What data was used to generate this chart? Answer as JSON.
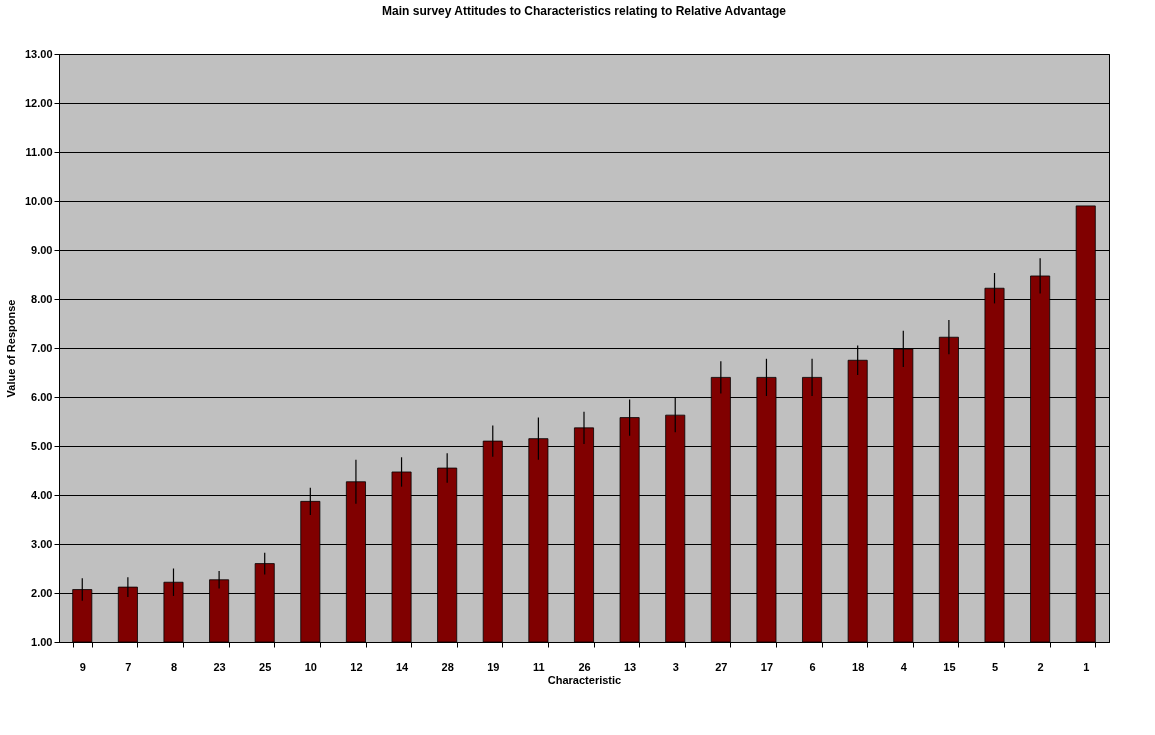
{
  "chart_data": {
    "type": "bar",
    "title": "Main survey Attitudes to Characteristics relating to Relative Advantage",
    "xlabel": "Characteristic",
    "ylabel": "Value of Response",
    "categories": [
      "9",
      "7",
      "8",
      "23",
      "25",
      "10",
      "12",
      "14",
      "28",
      "19",
      "11",
      "26",
      "13",
      "3",
      "27",
      "17",
      "6",
      "18",
      "4",
      "15",
      "5",
      "2",
      "1"
    ],
    "values": [
      2.07,
      2.12,
      2.22,
      2.27,
      2.6,
      3.87,
      4.27,
      4.47,
      4.55,
      5.1,
      5.15,
      5.37,
      5.58,
      5.63,
      6.4,
      6.4,
      6.4,
      6.75,
      6.98,
      7.22,
      8.22,
      8.47,
      9.9
    ],
    "errors": [
      0.23,
      0.2,
      0.28,
      0.18,
      0.22,
      0.28,
      0.45,
      0.3,
      0.3,
      0.32,
      0.43,
      0.33,
      0.37,
      0.35,
      0.33,
      0.38,
      0.38,
      0.3,
      0.37,
      0.35,
      0.31,
      0.36,
      null
    ],
    "color": "#800000",
    "ylim": [
      1,
      13
    ],
    "yticks": [
      {
        "value": 1,
        "label": "1.00"
      },
      {
        "value": 2,
        "label": "2.00"
      },
      {
        "value": 3,
        "label": "3.00"
      },
      {
        "value": 4,
        "label": "4.00"
      },
      {
        "value": 5,
        "label": "5.00"
      },
      {
        "value": 6,
        "label": "6.00"
      },
      {
        "value": 7,
        "label": "7.00"
      },
      {
        "value": 8,
        "label": "8.00"
      },
      {
        "value": 9,
        "label": "9.00"
      },
      {
        "value": 10,
        "label": "10.00"
      },
      {
        "value": 11,
        "label": "11.00"
      },
      {
        "value": 12,
        "label": "12.00"
      },
      {
        "value": 13,
        "label": "13.00"
      }
    ],
    "grid": "y"
  }
}
